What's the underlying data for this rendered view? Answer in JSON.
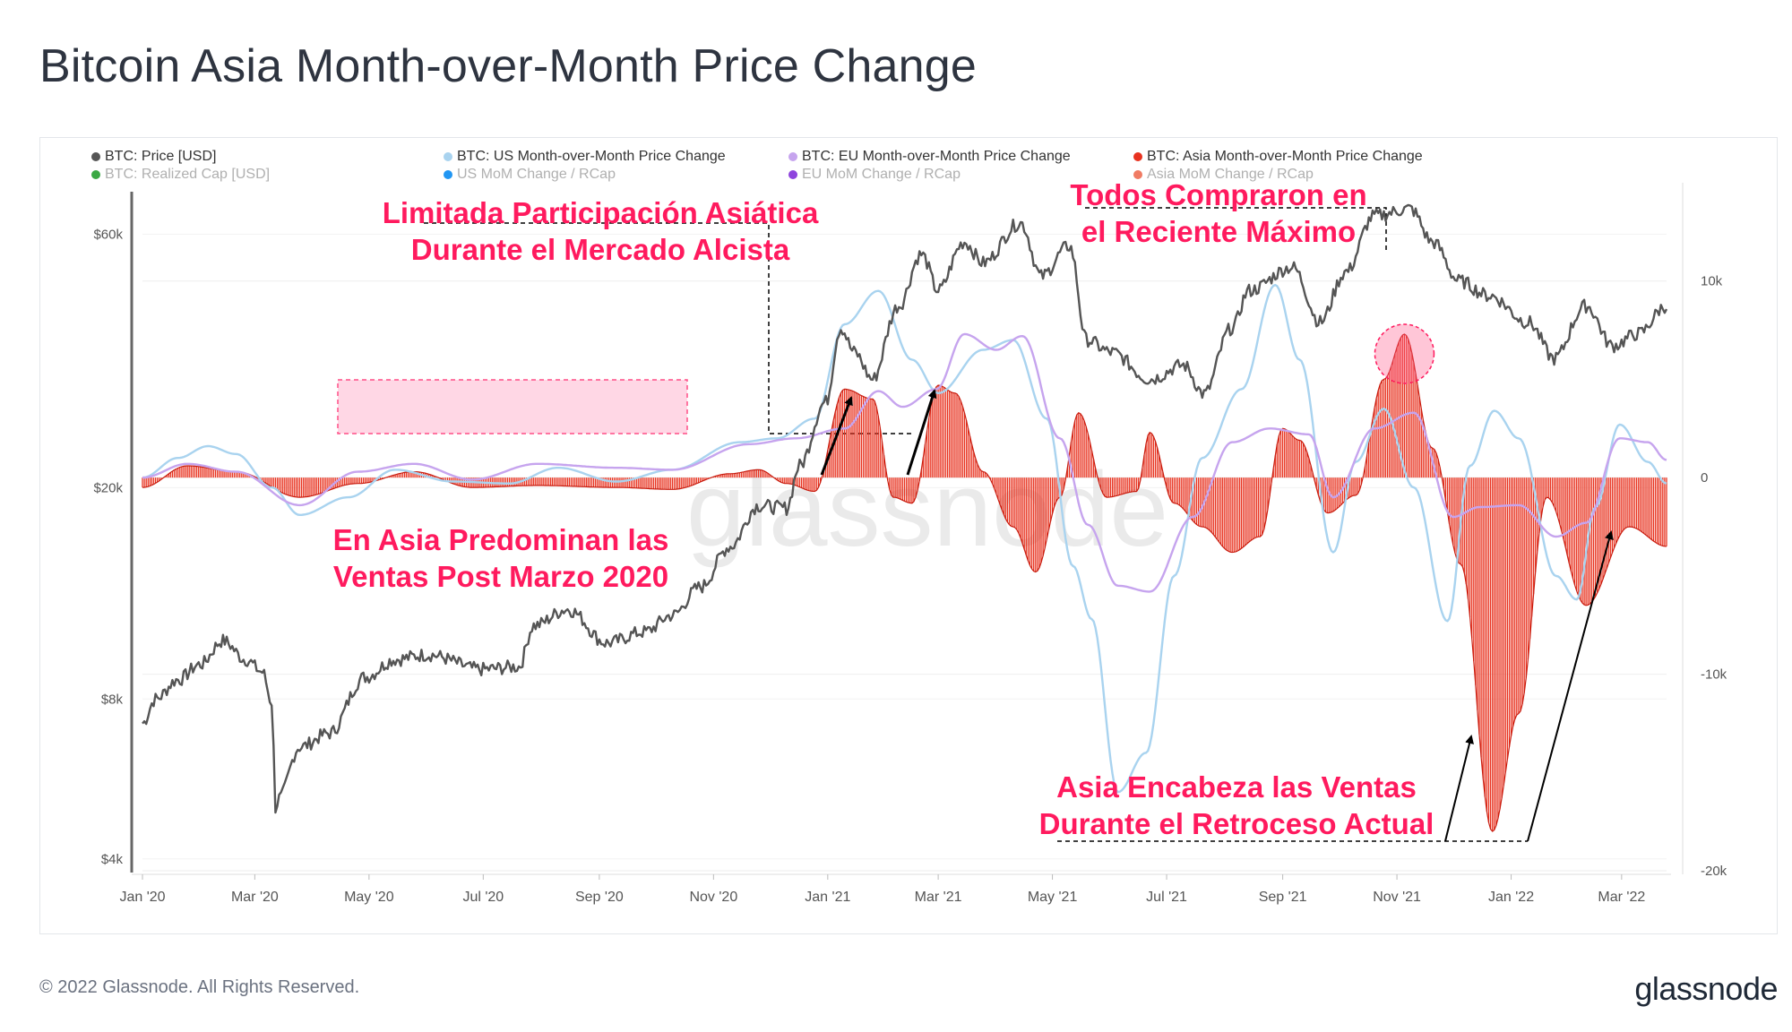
{
  "page": {
    "title": "Bitcoin Asia Month-over-Month Price Change",
    "footer_copyright": "© 2022 Glassnode. All Rights Reserved.",
    "footer_logo": "glassnode",
    "watermark": "glassnode"
  },
  "chart_data": {
    "type": "line",
    "x_start": "2020-01-01",
    "x_end": "2022-03-25",
    "x_ticks": [
      {
        "date": "2020-01-01",
        "label": "Jan '20"
      },
      {
        "date": "2020-03-01",
        "label": "Mar '20"
      },
      {
        "date": "2020-05-01",
        "label": "May '20"
      },
      {
        "date": "2020-07-01",
        "label": "Jul '20"
      },
      {
        "date": "2020-09-01",
        "label": "Sep '20"
      },
      {
        "date": "2020-11-01",
        "label": "Nov '20"
      },
      {
        "date": "2021-01-01",
        "label": "Jan '21"
      },
      {
        "date": "2021-03-01",
        "label": "Mar '21"
      },
      {
        "date": "2021-05-01",
        "label": "May '21"
      },
      {
        "date": "2021-07-01",
        "label": "Jul '21"
      },
      {
        "date": "2021-09-01",
        "label": "Sep '21"
      },
      {
        "date": "2021-11-01",
        "label": "Nov '21"
      },
      {
        "date": "2022-01-01",
        "label": "Jan '22"
      },
      {
        "date": "2022-03-01",
        "label": "Mar '22"
      }
    ],
    "y_left": {
      "scale": "log",
      "range": [
        3800,
        75000
      ],
      "ticks": [
        {
          "value": 4000,
          "label": "$4k"
        },
        {
          "value": 8000,
          "label": "$8k"
        },
        {
          "value": 20000,
          "label": "$20k"
        },
        {
          "value": 60000,
          "label": "$60k"
        }
      ]
    },
    "y_right": {
      "scale": "linear",
      "range": [
        -20000,
        15000
      ],
      "ticks": [
        {
          "value": 10000,
          "label": "10k"
        },
        {
          "value": 0,
          "label": "0"
        },
        {
          "value": -10000,
          "label": "-10k"
        },
        {
          "value": -20000,
          "label": "-20k"
        }
      ]
    },
    "legend": [
      {
        "label": "BTC: Price [USD]",
        "color": "#555555",
        "active": true
      },
      {
        "label": "BTC: US Month-over-Month Price Change",
        "color": "#a9d3ef",
        "active": true
      },
      {
        "label": "BTC: EU Month-over-Month Price Change",
        "color": "#c6a4ee",
        "active": true
      },
      {
        "label": "BTC: Asia Month-over-Month Price Change",
        "color": "#e8321f",
        "active": true
      },
      {
        "label": "BTC: Realized Cap [USD]",
        "color": "#3aa843",
        "active": false
      },
      {
        "label": "US MoM Change / RCap",
        "color": "#2196f3",
        "active": false
      },
      {
        "label": "EU MoM Change / RCap",
        "color": "#8e44dd",
        "active": false
      },
      {
        "label": "Asia MoM Change / RCap",
        "color": "#f07b63",
        "active": false
      }
    ],
    "series": [
      {
        "name": "BTC: Price [USD]",
        "axis": "left",
        "color": "#555555",
        "points": [
          [
            "2020-01-01",
            7200
          ],
          [
            "2020-01-08",
            8000
          ],
          [
            "2020-01-20",
            8700
          ],
          [
            "2020-02-01",
            9300
          ],
          [
            "2020-02-13",
            10300
          ],
          [
            "2020-02-25",
            9500
          ],
          [
            "2020-03-05",
            9000
          ],
          [
            "2020-03-10",
            7900
          ],
          [
            "2020-03-12",
            5000
          ],
          [
            "2020-03-14",
            5200
          ],
          [
            "2020-03-25",
            6500
          ],
          [
            "2020-04-10",
            6900
          ],
          [
            "2020-04-29",
            8800
          ],
          [
            "2020-05-15",
            9500
          ],
          [
            "2020-06-01",
            9700
          ],
          [
            "2020-06-30",
            9100
          ],
          [
            "2020-07-20",
            9200
          ],
          [
            "2020-07-28",
            11000
          ],
          [
            "2020-08-15",
            11800
          ],
          [
            "2020-09-05",
            10200
          ],
          [
            "2020-09-25",
            10700
          ],
          [
            "2020-10-10",
            11500
          ],
          [
            "2020-10-25",
            13000
          ],
          [
            "2020-11-10",
            15500
          ],
          [
            "2020-11-25",
            18500
          ],
          [
            "2020-12-10",
            18300
          ],
          [
            "2020-12-17",
            22000
          ],
          [
            "2020-12-31",
            29000
          ],
          [
            "2021-01-08",
            40000
          ],
          [
            "2021-01-15",
            36000
          ],
          [
            "2021-01-25",
            32000
          ],
          [
            "2021-02-08",
            44000
          ],
          [
            "2021-02-20",
            55000
          ],
          [
            "2021-03-01",
            47000
          ],
          [
            "2021-03-15",
            58000
          ],
          [
            "2021-03-25",
            53000
          ],
          [
            "2021-04-14",
            63000
          ],
          [
            "2021-04-25",
            50000
          ],
          [
            "2021-05-10",
            57000
          ],
          [
            "2021-05-19",
            38000
          ],
          [
            "2021-06-01",
            36000
          ],
          [
            "2021-06-22",
            32000
          ],
          [
            "2021-07-10",
            34000
          ],
          [
            "2021-07-21",
            30000
          ],
          [
            "2021-08-05",
            40000
          ],
          [
            "2021-08-14",
            47000
          ],
          [
            "2021-09-06",
            52000
          ],
          [
            "2021-09-21",
            41000
          ],
          [
            "2021-10-05",
            51000
          ],
          [
            "2021-10-20",
            65000
          ],
          [
            "2021-11-08",
            67000
          ],
          [
            "2021-11-20",
            58000
          ],
          [
            "2021-12-04",
            49000
          ],
          [
            "2021-12-20",
            46000
          ],
          [
            "2022-01-10",
            41000
          ],
          [
            "2022-01-24",
            35000
          ],
          [
            "2022-02-10",
            44000
          ],
          [
            "2022-02-24",
            37000
          ],
          [
            "2022-03-10",
            39000
          ],
          [
            "2022-03-25",
            44000
          ]
        ]
      },
      {
        "name": "BTC: US Month-over-Month Price Change",
        "axis": "right",
        "color": "#a9d3ef",
        "points": [
          [
            "2020-01-01",
            0
          ],
          [
            "2020-01-20",
            1000
          ],
          [
            "2020-02-05",
            1600
          ],
          [
            "2020-02-20",
            1200
          ],
          [
            "2020-03-10",
            -500
          ],
          [
            "2020-03-25",
            -1900
          ],
          [
            "2020-04-20",
            -1000
          ],
          [
            "2020-05-15",
            400
          ],
          [
            "2020-06-15",
            -200
          ],
          [
            "2020-07-15",
            -300
          ],
          [
            "2020-08-10",
            500
          ],
          [
            "2020-09-10",
            -200
          ],
          [
            "2020-10-10",
            400
          ],
          [
            "2020-11-15",
            1800
          ],
          [
            "2020-12-05",
            2000
          ],
          [
            "2020-12-25",
            3000
          ],
          [
            "2021-01-10",
            7800
          ],
          [
            "2021-01-28",
            9500
          ],
          [
            "2021-02-15",
            6000
          ],
          [
            "2021-03-01",
            4300
          ],
          [
            "2021-03-25",
            6500
          ],
          [
            "2021-04-10",
            7000
          ],
          [
            "2021-04-28",
            3000
          ],
          [
            "2021-05-12",
            -4500
          ],
          [
            "2021-05-22",
            -7200
          ],
          [
            "2021-06-05",
            -16000
          ],
          [
            "2021-06-20",
            -14000
          ],
          [
            "2021-07-05",
            -5000
          ],
          [
            "2021-07-20",
            1000
          ],
          [
            "2021-08-10",
            4500
          ],
          [
            "2021-08-28",
            9800
          ],
          [
            "2021-09-10",
            6000
          ],
          [
            "2021-09-28",
            -3800
          ],
          [
            "2021-10-10",
            800
          ],
          [
            "2021-10-25",
            3500
          ],
          [
            "2021-11-10",
            -500
          ],
          [
            "2021-11-28",
            -7300
          ],
          [
            "2021-12-10",
            600
          ],
          [
            "2021-12-23",
            3400
          ],
          [
            "2022-01-05",
            2000
          ],
          [
            "2022-01-25",
            -5000
          ],
          [
            "2022-02-05",
            -6200
          ],
          [
            "2022-02-15",
            -1500
          ],
          [
            "2022-02-28",
            2700
          ],
          [
            "2022-03-15",
            800
          ],
          [
            "2022-03-25",
            -300
          ]
        ]
      },
      {
        "name": "BTC: EU Month-over-Month Price Change",
        "axis": "right",
        "color": "#c6a4ee",
        "points": [
          [
            "2020-01-01",
            0
          ],
          [
            "2020-01-25",
            700
          ],
          [
            "2020-02-20",
            300
          ],
          [
            "2020-03-25",
            -1400
          ],
          [
            "2020-04-25",
            300
          ],
          [
            "2020-05-25",
            700
          ],
          [
            "2020-06-25",
            -100
          ],
          [
            "2020-07-30",
            700
          ],
          [
            "2020-09-10",
            500
          ],
          [
            "2020-10-10",
            400
          ],
          [
            "2020-11-20",
            1700
          ],
          [
            "2020-12-15",
            2000
          ],
          [
            "2021-01-10",
            2500
          ],
          [
            "2021-01-28",
            4400
          ],
          [
            "2021-02-10",
            3600
          ],
          [
            "2021-02-28",
            4500
          ],
          [
            "2021-03-15",
            7300
          ],
          [
            "2021-04-01",
            6500
          ],
          [
            "2021-04-15",
            7200
          ],
          [
            "2021-05-05",
            2000
          ],
          [
            "2021-05-20",
            -2400
          ],
          [
            "2021-06-05",
            -5500
          ],
          [
            "2021-06-22",
            -5800
          ],
          [
            "2021-07-15",
            -2000
          ],
          [
            "2021-08-05",
            1800
          ],
          [
            "2021-08-25",
            2500
          ],
          [
            "2021-09-15",
            2200
          ],
          [
            "2021-09-28",
            -1000
          ],
          [
            "2021-10-20",
            2500
          ],
          [
            "2021-11-10",
            3300
          ],
          [
            "2021-12-01",
            -2000
          ],
          [
            "2021-12-15",
            -1500
          ],
          [
            "2022-01-05",
            -1400
          ],
          [
            "2022-01-25",
            -3000
          ],
          [
            "2022-02-10",
            -2300
          ],
          [
            "2022-02-28",
            2000
          ],
          [
            "2022-03-15",
            1800
          ],
          [
            "2022-03-25",
            900
          ]
        ]
      },
      {
        "name": "BTC: Asia Month-over-Month Price Change",
        "axis": "right",
        "color": "#e8321f",
        "points": [
          [
            "2020-01-01",
            -500
          ],
          [
            "2020-01-25",
            600
          ],
          [
            "2020-02-20",
            300
          ],
          [
            "2020-03-25",
            -1000
          ],
          [
            "2020-04-25",
            -300
          ],
          [
            "2020-05-25",
            300
          ],
          [
            "2020-06-25",
            -500
          ],
          [
            "2020-07-30",
            -400
          ],
          [
            "2020-09-10",
            -500
          ],
          [
            "2020-10-10",
            -600
          ],
          [
            "2020-11-10",
            200
          ],
          [
            "2020-11-25",
            400
          ],
          [
            "2020-12-10",
            -300
          ],
          [
            "2020-12-25",
            -700
          ],
          [
            "2021-01-10",
            4500
          ],
          [
            "2021-01-25",
            4000
          ],
          [
            "2021-02-05",
            -1000
          ],
          [
            "2021-02-15",
            -1300
          ],
          [
            "2021-03-01",
            4700
          ],
          [
            "2021-03-10",
            4300
          ],
          [
            "2021-03-25",
            300
          ],
          [
            "2021-04-10",
            -2500
          ],
          [
            "2021-04-22",
            -4800
          ],
          [
            "2021-05-05",
            -1000
          ],
          [
            "2021-05-15",
            3300
          ],
          [
            "2021-05-30",
            -1000
          ],
          [
            "2021-06-15",
            -700
          ],
          [
            "2021-06-22",
            2300
          ],
          [
            "2021-07-05",
            -1300
          ],
          [
            "2021-07-20",
            -2500
          ],
          [
            "2021-08-05",
            -3800
          ],
          [
            "2021-08-20",
            -3000
          ],
          [
            "2021-09-01",
            2500
          ],
          [
            "2021-09-10",
            1900
          ],
          [
            "2021-09-25",
            -1800
          ],
          [
            "2021-10-10",
            -900
          ],
          [
            "2021-10-25",
            5000
          ],
          [
            "2021-11-05",
            7300
          ],
          [
            "2021-11-20",
            1500
          ],
          [
            "2021-12-05",
            -4400
          ],
          [
            "2021-12-22",
            -18000
          ],
          [
            "2022-01-05",
            -12000
          ],
          [
            "2022-01-20",
            -1000
          ],
          [
            "2022-02-10",
            -6500
          ],
          [
            "2022-03-05",
            -2500
          ],
          [
            "2022-03-25",
            -3500
          ]
        ]
      }
    ],
    "annotations": [
      {
        "text": "Limitada Participación Asiática",
        "line": 1
      },
      {
        "text": "Durante el Mercado Alcista",
        "line": 2
      },
      {
        "text": "Todos Compraron en",
        "line": 1
      },
      {
        "text": "el Reciente Máximo",
        "line": 2
      },
      {
        "text": "En Asia Predominan las",
        "line": 1
      },
      {
        "text": "Ventas Post Marzo 2020",
        "line": 2
      },
      {
        "text": "Asia Encabeza las Ventas",
        "line": 1
      },
      {
        "text": "Durante el Retroceso Actual",
        "line": 2
      }
    ],
    "annotation_color": "#ff1a5e"
  }
}
